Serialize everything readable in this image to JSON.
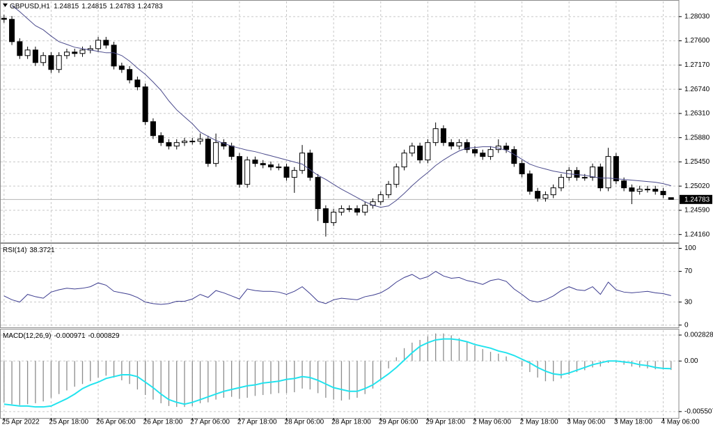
{
  "chart_data": [
    {
      "type": "candlestick",
      "title": "GBPUSD,H1",
      "grid": true,
      "color": "#000000",
      "categories": [
        "25 Apr 2022",
        null,
        null,
        null,
        null,
        null,
        "25 Apr 18:00",
        null,
        null,
        null,
        null,
        null,
        "26 Apr 06:00",
        null,
        null,
        null,
        null,
        null,
        "26 Apr 18:00",
        null,
        null,
        null,
        null,
        null,
        "27 Apr 06:00",
        null,
        null,
        null,
        null,
        null,
        "27 Apr 18:00",
        null,
        null,
        null,
        null,
        null,
        "28 Apr 06:00",
        null,
        null,
        null,
        null,
        null,
        "28 Apr 18:00",
        null,
        null,
        null,
        null,
        null,
        "29 Apr 06:00",
        null,
        null,
        null,
        null,
        null,
        "29 Apr 18:00",
        null,
        null,
        null,
        null,
        null,
        "2 May 06:00",
        null,
        null,
        null,
        null,
        null,
        "2 May 18:00",
        null,
        null,
        null,
        null,
        null,
        "3 May 06:00",
        null,
        null,
        null,
        null,
        null,
        "3 May 18:00",
        null,
        null,
        null,
        null,
        null,
        "4 May 06:00",
        null
      ],
      "open": [
        1.28,
        1.27981,
        1.27585,
        1.27338,
        1.27437,
        1.27214,
        1.27338,
        1.27091,
        1.27338,
        1.274,
        1.27375,
        1.27437,
        1.27461,
        1.2761,
        1.27523,
        1.27152,
        1.27091,
        1.26905,
        1.26782,
        1.26164,
        1.25916,
        1.25793,
        1.25731,
        1.25793,
        1.25818,
        1.25818,
        1.25855,
        1.25422,
        1.25793,
        1.25731,
        1.25546,
        1.25051,
        1.25484,
        1.25422,
        1.25397,
        1.2536,
        1.2536,
        1.25175,
        1.25298,
        1.25607,
        1.25175,
        1.24619,
        1.24371,
        1.24557,
        1.24619,
        1.24619,
        1.24557,
        1.2468,
        1.24742,
        1.24866,
        1.25051,
        1.2536,
        1.25607,
        1.25731,
        1.25484,
        1.25793,
        1.2604,
        1.25793,
        1.25731,
        1.25793,
        1.25669,
        1.25607,
        1.25546,
        1.25669,
        1.25731,
        1.25669,
        1.25422,
        1.25237,
        1.24928,
        1.24804,
        1.24866,
        1.24989,
        1.25175,
        1.25298,
        1.25175,
        1.25175,
        1.2536,
        1.24989,
        1.25546,
        1.25113,
        1.24989,
        1.24928,
        1.24965,
        1.24965,
        1.24928,
        1.24815
      ],
      "high": [
        1.2806,
        1.28041,
        1.27645,
        1.27497,
        1.27497,
        1.27398,
        1.27398,
        1.27398,
        1.2746,
        1.2746,
        1.27497,
        1.27521,
        1.2767,
        1.2767,
        1.27583,
        1.27212,
        1.27151,
        1.26965,
        1.26842,
        1.26224,
        1.25976,
        1.25853,
        1.25853,
        1.25878,
        1.25878,
        1.25955,
        1.25915,
        1.25953,
        1.25853,
        1.25791,
        1.25606,
        1.25544,
        1.25544,
        1.25482,
        1.25457,
        1.2542,
        1.2542,
        1.25358,
        1.2575,
        1.25667,
        1.25235,
        1.24679,
        1.24617,
        1.24679,
        1.24679,
        1.24679,
        1.2474,
        1.24802,
        1.24926,
        1.25111,
        1.2542,
        1.25667,
        1.25791,
        1.25791,
        1.25853,
        1.2615,
        1.261,
        1.25853,
        1.25853,
        1.25853,
        1.25729,
        1.25667,
        1.25729,
        1.2585,
        1.25791,
        1.25729,
        1.25482,
        1.25297,
        1.24988,
        1.24926,
        1.25049,
        1.25235,
        1.25358,
        1.25358,
        1.25235,
        1.2542,
        1.2542,
        1.257,
        1.25606,
        1.25173,
        1.25049,
        1.25025,
        1.25025,
        1.25025,
        1.24988,
        1.24815
      ],
      "low": [
        1.27921,
        1.27525,
        1.27278,
        1.27278,
        1.27154,
        1.27154,
        1.27031,
        1.27031,
        1.27278,
        1.27315,
        1.27315,
        1.27377,
        1.27401,
        1.27463,
        1.27092,
        1.27031,
        1.26845,
        1.26722,
        1.26104,
        1.25856,
        1.25733,
        1.25671,
        1.25671,
        1.25733,
        1.25758,
        1.25758,
        1.25362,
        1.25362,
        1.25671,
        1.25486,
        1.24991,
        1.24991,
        1.25362,
        1.25337,
        1.253,
        1.253,
        1.25115,
        1.249,
        1.25238,
        1.25115,
        1.244,
        1.24124,
        1.24311,
        1.24497,
        1.24559,
        1.24497,
        1.24497,
        1.2462,
        1.24682,
        1.24806,
        1.24991,
        1.253,
        1.25547,
        1.25424,
        1.25424,
        1.25733,
        1.25733,
        1.25671,
        1.25671,
        1.25609,
        1.25547,
        1.25486,
        1.25486,
        1.25609,
        1.25609,
        1.25362,
        1.25177,
        1.24868,
        1.24744,
        1.24744,
        1.24806,
        1.24929,
        1.25115,
        1.25115,
        1.25115,
        1.25115,
        1.24929,
        1.24929,
        1.25053,
        1.24929,
        1.247,
        1.24868,
        1.24905,
        1.24868,
        1.24806,
        1.24783
      ],
      "close": [
        1.27981,
        1.27585,
        1.27338,
        1.27437,
        1.27214,
        1.27338,
        1.27091,
        1.27338,
        1.274,
        1.27375,
        1.27437,
        1.27461,
        1.2761,
        1.27523,
        1.27152,
        1.27091,
        1.26905,
        1.26782,
        1.26164,
        1.25916,
        1.25793,
        1.25731,
        1.25793,
        1.25818,
        1.25818,
        1.25855,
        1.25422,
        1.25793,
        1.25731,
        1.25546,
        1.25051,
        1.25484,
        1.25422,
        1.25397,
        1.2536,
        1.2536,
        1.25175,
        1.25298,
        1.25607,
        1.25175,
        1.24619,
        1.24371,
        1.24557,
        1.24619,
        1.24619,
        1.24557,
        1.2468,
        1.24742,
        1.24866,
        1.25051,
        1.2536,
        1.25607,
        1.25731,
        1.25484,
        1.25793,
        1.2604,
        1.25793,
        1.25731,
        1.25793,
        1.25669,
        1.25607,
        1.25546,
        1.25669,
        1.25731,
        1.25669,
        1.25422,
        1.25237,
        1.24928,
        1.24804,
        1.24866,
        1.24989,
        1.25175,
        1.25298,
        1.25175,
        1.25175,
        1.2536,
        1.24989,
        1.25546,
        1.25113,
        1.24989,
        1.24928,
        1.24965,
        1.24965,
        1.24928,
        1.24866,
        1.24783
      ],
      "ma": {
        "color": "#4b4b8c",
        "values": [
          null,
          1.28228,
          1.28117,
          1.27993,
          1.27869,
          1.27795,
          1.27684,
          1.27585,
          1.27536,
          1.27486,
          1.27461,
          1.27437,
          1.27412,
          1.27387,
          1.27387,
          1.27338,
          1.27239,
          1.27115,
          1.27004,
          1.26868,
          1.2672,
          1.26534,
          1.26374,
          1.2625,
          1.26127,
          1.25978,
          1.25904,
          1.2583,
          1.2578,
          1.25731,
          1.25694,
          1.25657,
          1.25632,
          1.25595,
          1.25558,
          1.25521,
          1.25484,
          1.25447,
          1.2541,
          1.25311,
          1.25212,
          1.25138,
          1.25051,
          1.24965,
          1.24891,
          1.24816,
          1.24742,
          1.2468,
          1.24643,
          1.24668,
          1.24767,
          1.24891,
          1.25027,
          1.2515,
          1.25261,
          1.25385,
          1.25484,
          1.2557,
          1.25645,
          1.25694,
          1.25706,
          1.25719,
          1.25719,
          1.25694,
          1.25657,
          1.25583,
          1.25496,
          1.2541,
          1.2536,
          1.25323,
          1.25286,
          1.25261,
          1.25237,
          1.25224,
          1.25212,
          1.25187,
          1.25162,
          1.25162,
          1.2515,
          1.25138,
          1.25125,
          1.25113,
          1.25101,
          1.25088,
          1.25064,
          1.25027
        ]
      },
      "ylim": [
        1.2402,
        1.283
      ],
      "yticks": [
        {
          "value": 1.2803,
          "label": "1.28030"
        },
        {
          "value": 1.276,
          "label": "1.27600"
        },
        {
          "value": 1.2717,
          "label": "1.27170"
        },
        {
          "value": 1.2674,
          "label": "1.26740"
        },
        {
          "value": 1.2631,
          "label": "1.26310"
        },
        {
          "value": 1.2588,
          "label": "1.25880"
        },
        {
          "value": 1.2545,
          "label": "1.25450"
        },
        {
          "value": 1.2502,
          "label": "1.25020"
        },
        {
          "value": 1.2459,
          "label": "1.24590"
        },
        {
          "value": 1.2416,
          "label": "1.24160"
        }
      ]
    },
    {
      "type": "line",
      "title": "RSI(14)",
      "grid": true,
      "color": "#3c3c8f",
      "values": [
        38,
        33,
        30,
        40,
        37,
        35,
        43,
        46,
        48,
        47,
        48,
        50,
        55,
        52,
        44,
        42,
        40,
        36,
        30,
        28,
        27,
        28,
        31,
        31,
        34,
        40,
        36,
        45,
        42,
        38,
        34,
        47,
        45,
        44,
        44,
        43,
        40,
        44,
        50,
        41,
        31,
        28,
        33,
        35,
        34,
        33,
        37,
        39,
        42,
        48,
        56,
        62,
        66,
        60,
        63,
        70,
        64,
        61,
        62,
        58,
        56,
        53,
        58,
        60,
        57,
        47,
        40,
        32,
        30,
        33,
        38,
        45,
        50,
        46,
        45,
        50,
        40,
        56,
        46,
        43,
        42,
        43,
        44,
        42,
        41,
        38.3721
      ],
      "ylim": [
        -3,
        105
      ],
      "yticks": [
        100,
        70,
        30,
        0
      ]
    },
    {
      "type": "macd",
      "title": "MACD(12,26,9)",
      "grid": true,
      "histogram": {
        "color": "#8c8c8c",
        "values": [
          -0.0045,
          -0.0047,
          -0.0048,
          -0.0047,
          -0.0046,
          -0.0044,
          -0.004,
          -0.0036,
          -0.0032,
          -0.0028,
          -0.0025,
          -0.0022,
          -0.0018,
          -0.0016,
          -0.0018,
          -0.0021,
          -0.0025,
          -0.0031,
          -0.0037,
          -0.0042,
          -0.0046,
          -0.0049,
          -0.005,
          -0.005,
          -0.0049,
          -0.0046,
          -0.0045,
          -0.0042,
          -0.004,
          -0.0039,
          -0.0041,
          -0.004,
          -0.0038,
          -0.0037,
          -0.0036,
          -0.0035,
          -0.0035,
          -0.0034,
          -0.003,
          -0.0031,
          -0.0035,
          -0.004,
          -0.0042,
          -0.0043,
          -0.0042,
          -0.004,
          -0.0036,
          -0.003,
          -0.002,
          -0.0008,
          0.0004,
          0.0014,
          0.002,
          0.0023,
          0.0027,
          0.003,
          0.003,
          0.0028,
          0.0025,
          0.0021,
          0.0017,
          0.0013,
          0.001,
          0.0008,
          0.0005,
          0,
          -0.0006,
          -0.0012,
          -0.0018,
          -0.0022,
          -0.0022,
          -0.0019,
          -0.0015,
          -0.0012,
          -0.001,
          -0.0007,
          -0.0006,
          -0.0002,
          -0.0002,
          -0.0004,
          -0.0006,
          -0.0007,
          -0.0008,
          -0.0009,
          -0.0009,
          -0.000971
        ]
      },
      "signal": {
        "color": "#22e3ee",
        "values": [
          -0.0047,
          -0.0048,
          -0.0049,
          -0.0049,
          -0.005,
          -0.005,
          -0.0049,
          -0.0045,
          -0.0041,
          -0.0036,
          -0.003,
          -0.0026,
          -0.0023,
          -0.0019,
          -0.0017,
          -0.0015,
          -0.0015,
          -0.0017,
          -0.0023,
          -0.0029,
          -0.0036,
          -0.0042,
          -0.0045,
          -0.0047,
          -0.0045,
          -0.0042,
          -0.0039,
          -0.0036,
          -0.0033,
          -0.0031,
          -0.0029,
          -0.0027,
          -0.0026,
          -0.0024,
          -0.0023,
          -0.0022,
          -0.002,
          -0.0019,
          -0.0017,
          -0.0018,
          -0.0021,
          -0.0025,
          -0.0029,
          -0.0031,
          -0.0033,
          -0.0033,
          -0.003,
          -0.0026,
          -0.002,
          -0.0014,
          -0.0007,
          0.0001,
          0.0009,
          0.0016,
          0.002,
          0.0023,
          0.0024,
          0.0024,
          0.0023,
          0.0021,
          0.0018,
          0.0016,
          0.0014,
          0.0011,
          0.0009,
          0.0006,
          0.0002,
          -0.0002,
          -0.0007,
          -0.0011,
          -0.0014,
          -0.0015,
          -0.0013,
          -0.001,
          -0.0007,
          -0.0004,
          -0.0002,
          0,
          0,
          -0.0001,
          -0.0002,
          -0.0004,
          -0.0005,
          -0.0007,
          -0.0008,
          -0.000829
        ]
      },
      "ylim": [
        -0.0062,
        0.00336
      ],
      "yticks": [
        0.002828,
        {
          "value": 0,
          "label": "0.00"
        },
        -0.005507
      ]
    }
  ]
}
